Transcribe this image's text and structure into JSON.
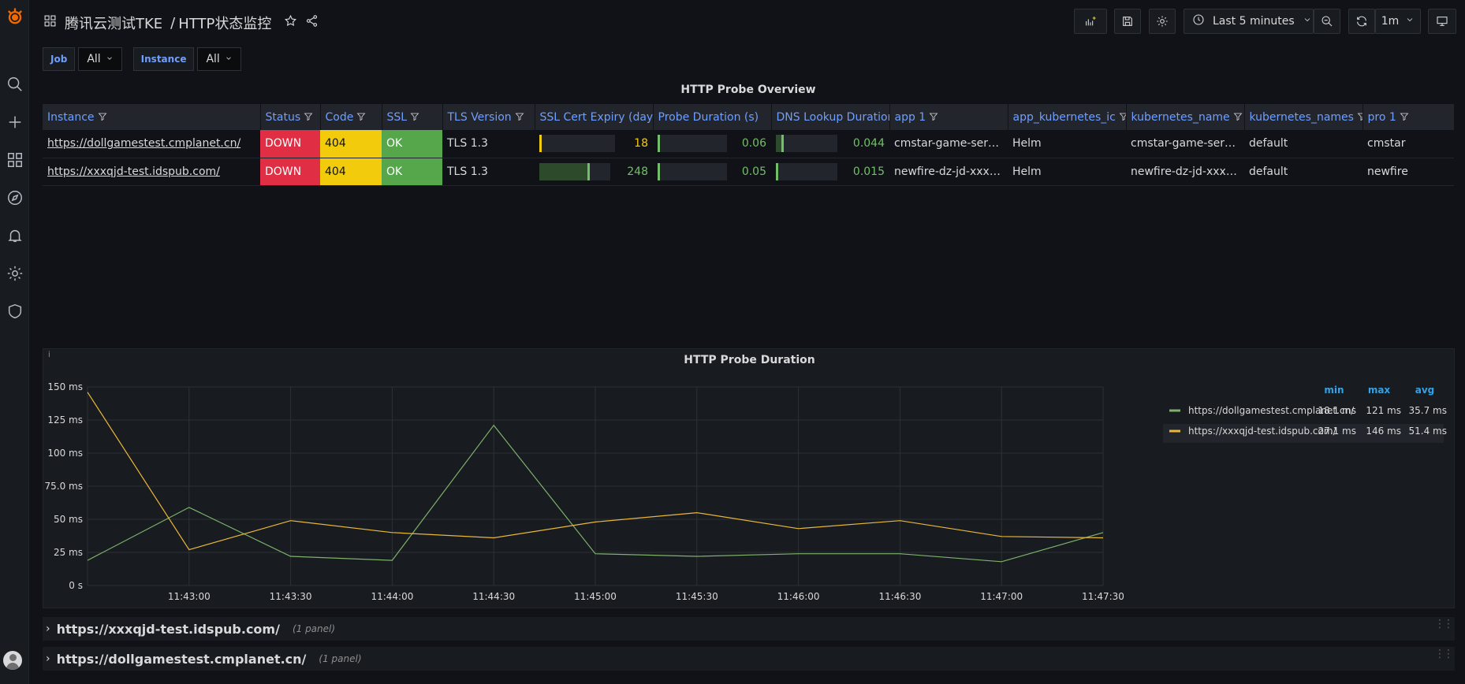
{
  "dashboard": {
    "folder": "腾讯云测试TKE",
    "separator": "/",
    "title": "HTTP状态监控"
  },
  "toolbar": {
    "time_range": "Last 5 minutes",
    "refresh_interval": "1m"
  },
  "variables": [
    {
      "label": "Job",
      "value": "All"
    },
    {
      "label": "Instance",
      "value": "All"
    }
  ],
  "table_panel": {
    "title": "HTTP Probe Overview",
    "columns": [
      "Instance",
      "Status",
      "Code",
      "SSL",
      "TLS Version",
      "SSL Cert Expiry (days",
      "Probe Duration (s)",
      "DNS Lookup Duratior",
      "app 1",
      "app_kubernetes_ic",
      "kubernetes_name",
      "kubernetes_names",
      "pro 1"
    ],
    "rows": [
      {
        "instance": "https://dollgamestest.cmplanet.cn/",
        "status": "DOWN",
        "code": "404",
        "ssl": "OK",
        "tls": "TLS 1.3",
        "cert_expiry": "18",
        "cert_expiry_fraction": 0.02,
        "cert_color": "#f2cc0c",
        "probe_duration": "0.06",
        "probe_fraction": 0.02,
        "dns_lookup": "0.044",
        "dns_fraction": 0.12,
        "app": "cmstar-game-serve…",
        "app_k8s": "Helm",
        "k8s_name": "cmstar-game-serve…",
        "k8s_namespace": "default",
        "pro": "cmstar"
      },
      {
        "instance": "https://xxxqjd-test.idspub.com/",
        "status": "DOWN",
        "code": "404",
        "ssl": "OK",
        "tls": "TLS 1.3",
        "cert_expiry": "248",
        "cert_expiry_fraction": 0.7,
        "cert_color": "#73bf69",
        "probe_duration": "0.05",
        "probe_fraction": 0.02,
        "dns_lookup": "0.015",
        "dns_fraction": 0.02,
        "app": "newfire-dz-jd-xxxqjd…",
        "app_k8s": "Helm",
        "k8s_name": "newfire-dz-jd-xxxqjd…",
        "k8s_namespace": "default",
        "pro": "newfire"
      }
    ]
  },
  "chart_panel": {
    "info": "i",
    "title": "HTTP Probe Duration"
  },
  "chart_data": {
    "type": "line",
    "title": "HTTP Probe Duration",
    "xlabel": "",
    "ylabel": "",
    "x": [
      "11:42:30",
      "11:43:00",
      "11:43:30",
      "11:44:00",
      "11:44:30",
      "11:45:00",
      "11:45:30",
      "11:46:00",
      "11:46:30",
      "11:47:00",
      "11:47:30"
    ],
    "x_tick_labels": [
      "11:43:00",
      "11:43:30",
      "11:44:00",
      "11:44:30",
      "11:45:00",
      "11:45:30",
      "11:46:00",
      "11:46:30",
      "11:47:00",
      "11:47:30"
    ],
    "y_tick_labels": [
      "0 s",
      "25 ms",
      "50 ms",
      "75.0 ms",
      "100 ms",
      "125 ms",
      "150 ms"
    ],
    "y_ticks": [
      0,
      25,
      50,
      75,
      100,
      125,
      150
    ],
    "ylim": [
      0,
      150
    ],
    "grid": true,
    "legend_position": "right",
    "legend_headers": [
      "min",
      "max",
      "avg"
    ],
    "series": [
      {
        "name": "https://dollgamestest.cmplanet.cn/",
        "color": "#7eb26d",
        "values": [
          19,
          59,
          22,
          19,
          121,
          24,
          22,
          24,
          24,
          18,
          40
        ],
        "min": "18.1 ms",
        "max": "121 ms",
        "avg": "35.7 ms"
      },
      {
        "name": "https://xxxqjd-test.idspub.com/",
        "color": "#eab839",
        "values": [
          146,
          27,
          49,
          40,
          36,
          48,
          55,
          43,
          49,
          37,
          36
        ],
        "min": "27.1 ms",
        "max": "146 ms",
        "avg": "51.4 ms"
      }
    ]
  },
  "rows": [
    {
      "title": "https://xxxqjd-test.idspub.com/",
      "count": "(1 panel)"
    },
    {
      "title": "https://dollgamestest.cmplanet.cn/",
      "count": "(1 panel)"
    }
  ]
}
